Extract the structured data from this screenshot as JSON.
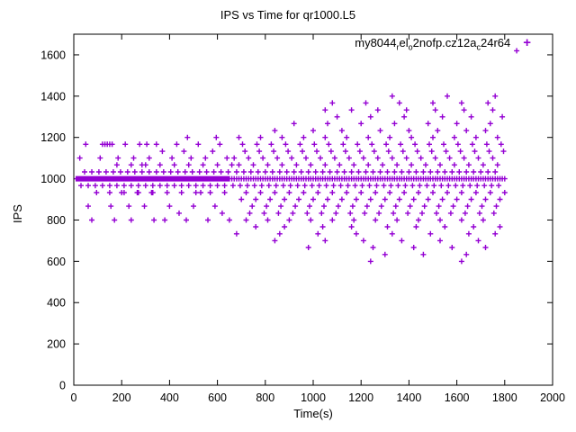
{
  "chart_data": {
    "type": "scatter",
    "title": "IPS vs Time for qr1000.L5",
    "xlabel": "Time(s)",
    "ylabel": "IPS",
    "xlim": [
      0,
      2000
    ],
    "ylim": [
      0,
      1700
    ],
    "xticks": [
      0,
      200,
      400,
      600,
      800,
      1000,
      1200,
      1400,
      1600,
      1800,
      2000
    ],
    "yticks": [
      0,
      200,
      400,
      600,
      800,
      1000,
      1200,
      1400,
      1600
    ],
    "grid": false,
    "marker": "plus",
    "color": "#9400d3",
    "legend": {
      "label": "my8044_rel_o2nofp.cz12a_c24r64",
      "marker_glyph": "+",
      "position": "top-right-inside",
      "segments": [
        {
          "text": "my8044",
          "sub": false
        },
        {
          "text": "r",
          "sub": true
        },
        {
          "text": "el",
          "sub": false
        },
        {
          "text": "o",
          "sub": true
        },
        {
          "text": "2nofp.cz12a",
          "sub": false
        },
        {
          "text": "c",
          "sub": true
        },
        {
          "text": "24r64",
          "sub": false
        }
      ]
    },
    "series_runs": [
      {
        "y": 1000,
        "from": 10,
        "to": 650,
        "step": 5
      },
      {
        "y": 1000,
        "from": 660,
        "to": 1800,
        "step": 10
      },
      {
        "y": 967,
        "from": 30,
        "to": 630,
        "step": 30
      },
      {
        "y": 1033,
        "from": 45,
        "to": 645,
        "step": 30
      },
      {
        "y": 933,
        "from": 150,
        "to": 630,
        "step": 60
      },
      {
        "y": 1067,
        "from": 180,
        "to": 660,
        "step": 60
      },
      {
        "y": 967,
        "from": 665,
        "to": 1795,
        "step": 30
      },
      {
        "y": 1033,
        "from": 680,
        "to": 1780,
        "step": 30
      },
      {
        "y": 1067,
        "from": 690,
        "to": 1770,
        "step": 60
      },
      {
        "y": 933,
        "from": 720,
        "to": 1800,
        "step": 60
      },
      {
        "y": 1100,
        "from": 670,
        "to": 1750,
        "step": 60
      },
      {
        "y": 900,
        "from": 700,
        "to": 1780,
        "step": 60
      },
      {
        "y": 1133,
        "from": 715,
        "to": 1795,
        "step": 60
      },
      {
        "y": 867,
        "from": 745,
        "to": 1765,
        "step": 60
      },
      {
        "y": 1167,
        "from": 705,
        "to": 1785,
        "step": 60
      },
      {
        "y": 833,
        "from": 735,
        "to": 1755,
        "step": 60
      },
      {
        "y": 1200,
        "from": 690,
        "to": 1770,
        "step": 90
      },
      {
        "y": 800,
        "from": 720,
        "to": 1710,
        "step": 90
      }
    ],
    "points": [
      [
        25,
        1100
      ],
      [
        50,
        1167
      ],
      [
        60,
        867
      ],
      [
        75,
        800
      ],
      [
        95,
        933
      ],
      [
        110,
        1100
      ],
      [
        120,
        1167
      ],
      [
        130,
        1167
      ],
      [
        140,
        1167
      ],
      [
        150,
        1167
      ],
      [
        160,
        1167
      ],
      [
        155,
        867
      ],
      [
        170,
        800
      ],
      [
        185,
        1100
      ],
      [
        200,
        933
      ],
      [
        215,
        1167
      ],
      [
        230,
        867
      ],
      [
        240,
        800
      ],
      [
        250,
        1100
      ],
      [
        265,
        933
      ],
      [
        275,
        1167
      ],
      [
        285,
        1067
      ],
      [
        295,
        867
      ],
      [
        305,
        1167
      ],
      [
        315,
        1100
      ],
      [
        325,
        933
      ],
      [
        335,
        800
      ],
      [
        345,
        1167
      ],
      [
        370,
        1133
      ],
      [
        380,
        800
      ],
      [
        400,
        867
      ],
      [
        410,
        1100
      ],
      [
        430,
        1167
      ],
      [
        440,
        833
      ],
      [
        460,
        1133
      ],
      [
        470,
        800
      ],
      [
        475,
        1200
      ],
      [
        490,
        1100
      ],
      [
        500,
        867
      ],
      [
        520,
        1167
      ],
      [
        530,
        933
      ],
      [
        550,
        1100
      ],
      [
        560,
        800
      ],
      [
        580,
        1133
      ],
      [
        590,
        867
      ],
      [
        595,
        1200
      ],
      [
        610,
        1167
      ],
      [
        620,
        833
      ],
      [
        640,
        1100
      ],
      [
        650,
        800
      ],
      [
        840,
        1233
      ],
      [
        1000,
        1233
      ],
      [
        1120,
        1233
      ],
      [
        1280,
        1233
      ],
      [
        1400,
        1233
      ],
      [
        1520,
        1233
      ],
      [
        1640,
        1233
      ],
      [
        1720,
        1233
      ],
      [
        760,
        767
      ],
      [
        880,
        767
      ],
      [
        1040,
        767
      ],
      [
        1160,
        767
      ],
      [
        1310,
        767
      ],
      [
        1430,
        767
      ],
      [
        1550,
        767
      ],
      [
        1670,
        767
      ],
      [
        1780,
        767
      ],
      [
        920,
        1267
      ],
      [
        1060,
        1267
      ],
      [
        1200,
        1267
      ],
      [
        1340,
        1267
      ],
      [
        1480,
        1267
      ],
      [
        1600,
        1267
      ],
      [
        1740,
        1267
      ],
      [
        680,
        733
      ],
      [
        860,
        733
      ],
      [
        1020,
        733
      ],
      [
        1180,
        733
      ],
      [
        1330,
        733
      ],
      [
        1490,
        733
      ],
      [
        1650,
        733
      ],
      [
        1760,
        733
      ],
      [
        1100,
        1300
      ],
      [
        1240,
        1300
      ],
      [
        1380,
        1300
      ],
      [
        1540,
        1300
      ],
      [
        1660,
        1300
      ],
      [
        1790,
        1300
      ],
      [
        840,
        700
      ],
      [
        1050,
        700
      ],
      [
        1210,
        700
      ],
      [
        1370,
        700
      ],
      [
        1530,
        700
      ],
      [
        1690,
        700
      ],
      [
        1050,
        1333
      ],
      [
        1160,
        1333
      ],
      [
        1270,
        1333
      ],
      [
        1390,
        1333
      ],
      [
        1510,
        1333
      ],
      [
        1630,
        1333
      ],
      [
        1750,
        1333
      ],
      [
        980,
        667
      ],
      [
        1250,
        667
      ],
      [
        1420,
        667
      ],
      [
        1580,
        667
      ],
      [
        1720,
        667
      ],
      [
        1080,
        1367
      ],
      [
        1220,
        1367
      ],
      [
        1360,
        1367
      ],
      [
        1500,
        1367
      ],
      [
        1620,
        1367
      ],
      [
        1730,
        1367
      ],
      [
        1300,
        633
      ],
      [
        1460,
        633
      ],
      [
        1640,
        633
      ],
      [
        1330,
        1400
      ],
      [
        1560,
        1400
      ],
      [
        1760,
        1400
      ],
      [
        1240,
        600
      ],
      [
        1620,
        600
      ],
      [
        1850,
        1620
      ]
    ]
  }
}
